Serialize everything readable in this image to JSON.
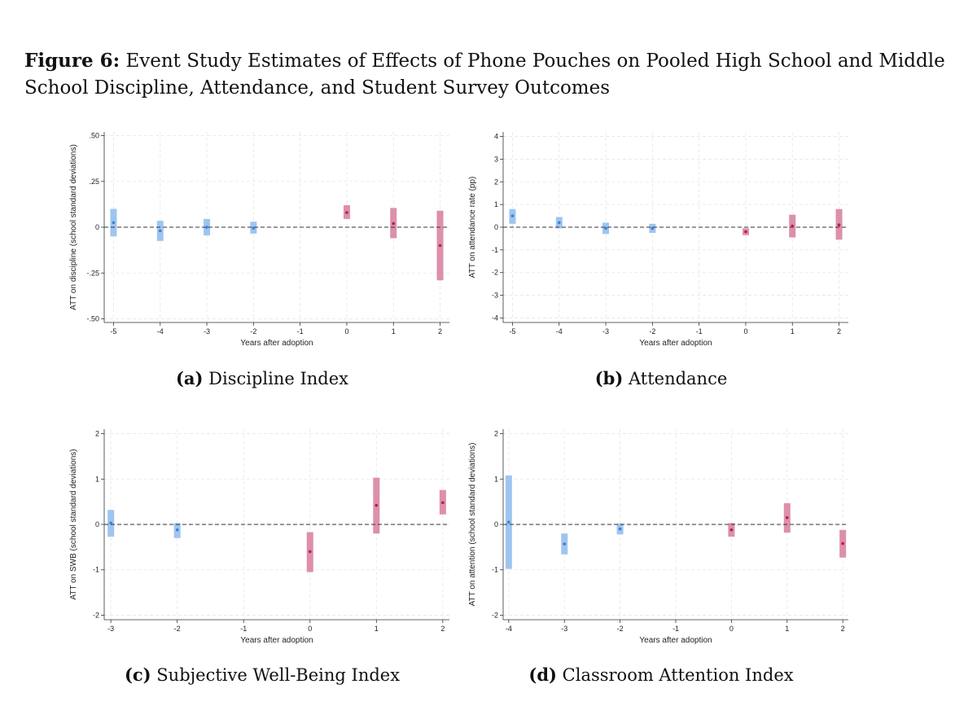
{
  "figure": {
    "label": "Figure 6:",
    "title": "Event Study Estimates of Effects of Phone Pouches on Pooled High School and Middle School Discipline, Attendance, and Student Survey Outcomes"
  },
  "colors": {
    "pre": "#9ec5f0",
    "pre_point": "#3d7fd6",
    "post": "#dd8fac",
    "post_point": "#b01f55",
    "grid": "#e6e6e6",
    "axis": "#333333"
  },
  "chart_data": [
    {
      "type": "scatter",
      "subcaption_label": "(a)",
      "subcaption_text": "Discipline Index",
      "xlabel": "Years after adoption",
      "ylabel": "ATT on discipline (school standard deviations)",
      "x_ticks": [
        -5,
        -4,
        -3,
        -2,
        -1,
        0,
        1,
        2
      ],
      "y_ticks": [
        -0.5,
        -0.25,
        0,
        0.25,
        0.5
      ],
      "y_tick_labels": [
        "-.50",
        "-.25",
        "0",
        ".25",
        ".50"
      ],
      "xlim": [
        -5.2,
        2.2
      ],
      "ylim": [
        -0.52,
        0.52
      ],
      "reference_line_y": 0,
      "grid": true,
      "points": [
        {
          "x": -5,
          "y": 0.025,
          "lo": -0.05,
          "hi": 0.1,
          "period": "pre"
        },
        {
          "x": -4,
          "y": -0.02,
          "lo": -0.075,
          "hi": 0.035,
          "period": "pre"
        },
        {
          "x": -3,
          "y": 0.0,
          "lo": -0.045,
          "hi": 0.045,
          "period": "pre"
        },
        {
          "x": -2,
          "y": -0.005,
          "lo": -0.035,
          "hi": 0.03,
          "period": "pre"
        },
        {
          "x": 0,
          "y": 0.08,
          "lo": 0.045,
          "hi": 0.12,
          "period": "post"
        },
        {
          "x": 1,
          "y": 0.02,
          "lo": -0.06,
          "hi": 0.105,
          "period": "post"
        },
        {
          "x": 2,
          "y": -0.1,
          "lo": -0.29,
          "hi": 0.09,
          "period": "post"
        }
      ]
    },
    {
      "type": "scatter",
      "subcaption_label": "(b)",
      "subcaption_text": "Attendance",
      "xlabel": "Years after adoption",
      "ylabel": "ATT on attendance rate (pp)",
      "x_ticks": [
        -5,
        -4,
        -3,
        -2,
        -1,
        0,
        1,
        2
      ],
      "y_ticks": [
        -4,
        -3,
        -2,
        -1,
        0,
        1,
        2,
        3,
        4
      ],
      "y_tick_labels": [
        "-4",
        "-3",
        "-2",
        "-1",
        "0",
        "1",
        "2",
        "3",
        "4"
      ],
      "xlim": [
        -5.2,
        2.2
      ],
      "ylim": [
        -4.2,
        4.2
      ],
      "reference_line_y": 0,
      "grid": true,
      "points": [
        {
          "x": -5,
          "y": 0.5,
          "lo": 0.15,
          "hi": 0.8,
          "period": "pre"
        },
        {
          "x": -4,
          "y": 0.2,
          "lo": -0.05,
          "hi": 0.45,
          "period": "pre"
        },
        {
          "x": -3,
          "y": -0.05,
          "lo": -0.3,
          "hi": 0.2,
          "period": "pre"
        },
        {
          "x": -2,
          "y": -0.05,
          "lo": -0.25,
          "hi": 0.15,
          "period": "pre"
        },
        {
          "x": 0,
          "y": -0.2,
          "lo": -0.35,
          "hi": -0.05,
          "period": "post"
        },
        {
          "x": 1,
          "y": 0.05,
          "lo": -0.45,
          "hi": 0.55,
          "period": "post"
        },
        {
          "x": 2,
          "y": 0.1,
          "lo": -0.55,
          "hi": 0.8,
          "period": "post"
        }
      ]
    },
    {
      "type": "scatter",
      "subcaption_label": "(c)",
      "subcaption_text": "Subjective Well-Being Index",
      "xlabel": "Years after adoption",
      "ylabel": "ATT on SWB (school standard deviations)",
      "x_ticks": [
        -3,
        -2,
        -1,
        0,
        1,
        2
      ],
      "y_ticks": [
        -2,
        -1,
        0,
        1,
        2
      ],
      "y_tick_labels": [
        "-2",
        "-1",
        "0",
        "1",
        "2"
      ],
      "xlim": [
        -3.1,
        2.1
      ],
      "ylim": [
        -2.1,
        2.1
      ],
      "reference_line_y": 0,
      "grid": true,
      "points": [
        {
          "x": -3,
          "y": 0.03,
          "lo": -0.27,
          "hi": 0.32,
          "period": "pre"
        },
        {
          "x": -2,
          "y": -0.12,
          "lo": -0.3,
          "hi": 0.03,
          "period": "pre"
        },
        {
          "x": 0,
          "y": -0.6,
          "lo": -1.05,
          "hi": -0.17,
          "period": "post"
        },
        {
          "x": 1,
          "y": 0.42,
          "lo": -0.2,
          "hi": 1.03,
          "period": "post"
        },
        {
          "x": 2,
          "y": 0.48,
          "lo": 0.22,
          "hi": 0.76,
          "period": "post"
        }
      ]
    },
    {
      "type": "scatter",
      "subcaption_label": "(d)",
      "subcaption_text": "Classroom Attention Index",
      "xlabel": "Years after adoption",
      "ylabel": "ATT on attention (school standard deviations)",
      "x_ticks": [
        -4,
        -3,
        -2,
        -1,
        0,
        1,
        2
      ],
      "y_ticks": [
        -2,
        -1,
        0,
        1,
        2
      ],
      "y_tick_labels": [
        "-2",
        "-1",
        "0",
        "1",
        "2"
      ],
      "xlim": [
        -4.1,
        2.1
      ],
      "ylim": [
        -2.1,
        2.1
      ],
      "reference_line_y": 0,
      "grid": true,
      "points": [
        {
          "x": -4,
          "y": 0.05,
          "lo": -0.98,
          "hi": 1.08,
          "period": "pre"
        },
        {
          "x": -3,
          "y": -0.43,
          "lo": -0.66,
          "hi": -0.2,
          "period": "pre"
        },
        {
          "x": -2,
          "y": -0.1,
          "lo": -0.22,
          "hi": 0.02,
          "period": "pre"
        },
        {
          "x": 0,
          "y": -0.12,
          "lo": -0.27,
          "hi": 0.03,
          "period": "post"
        },
        {
          "x": 1,
          "y": 0.15,
          "lo": -0.18,
          "hi": 0.47,
          "period": "post"
        },
        {
          "x": 2,
          "y": -0.42,
          "lo": -0.73,
          "hi": -0.12,
          "period": "post"
        }
      ]
    }
  ]
}
